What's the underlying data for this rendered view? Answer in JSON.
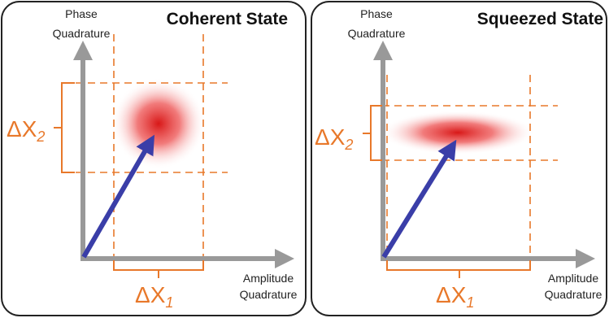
{
  "panels": [
    {
      "title": "Coherent State",
      "y_axis_label": [
        "Phase",
        "Quadrature"
      ],
      "x_axis_label": [
        "Amplitude",
        "Quadrature"
      ],
      "delta_x1": {
        "symbol": "ΔX",
        "subscript": "1"
      },
      "delta_x2": {
        "symbol": "ΔX",
        "subscript": "2"
      }
    },
    {
      "title": "Squeezed State",
      "y_axis_label": [
        "Phase",
        "Quadrature"
      ],
      "x_axis_label": [
        "Amplitude",
        "Quadrature"
      ],
      "delta_x1": {
        "symbol": "ΔX",
        "subscript": "1"
      },
      "delta_x2": {
        "symbol": "ΔX",
        "subscript": "2"
      }
    }
  ]
}
